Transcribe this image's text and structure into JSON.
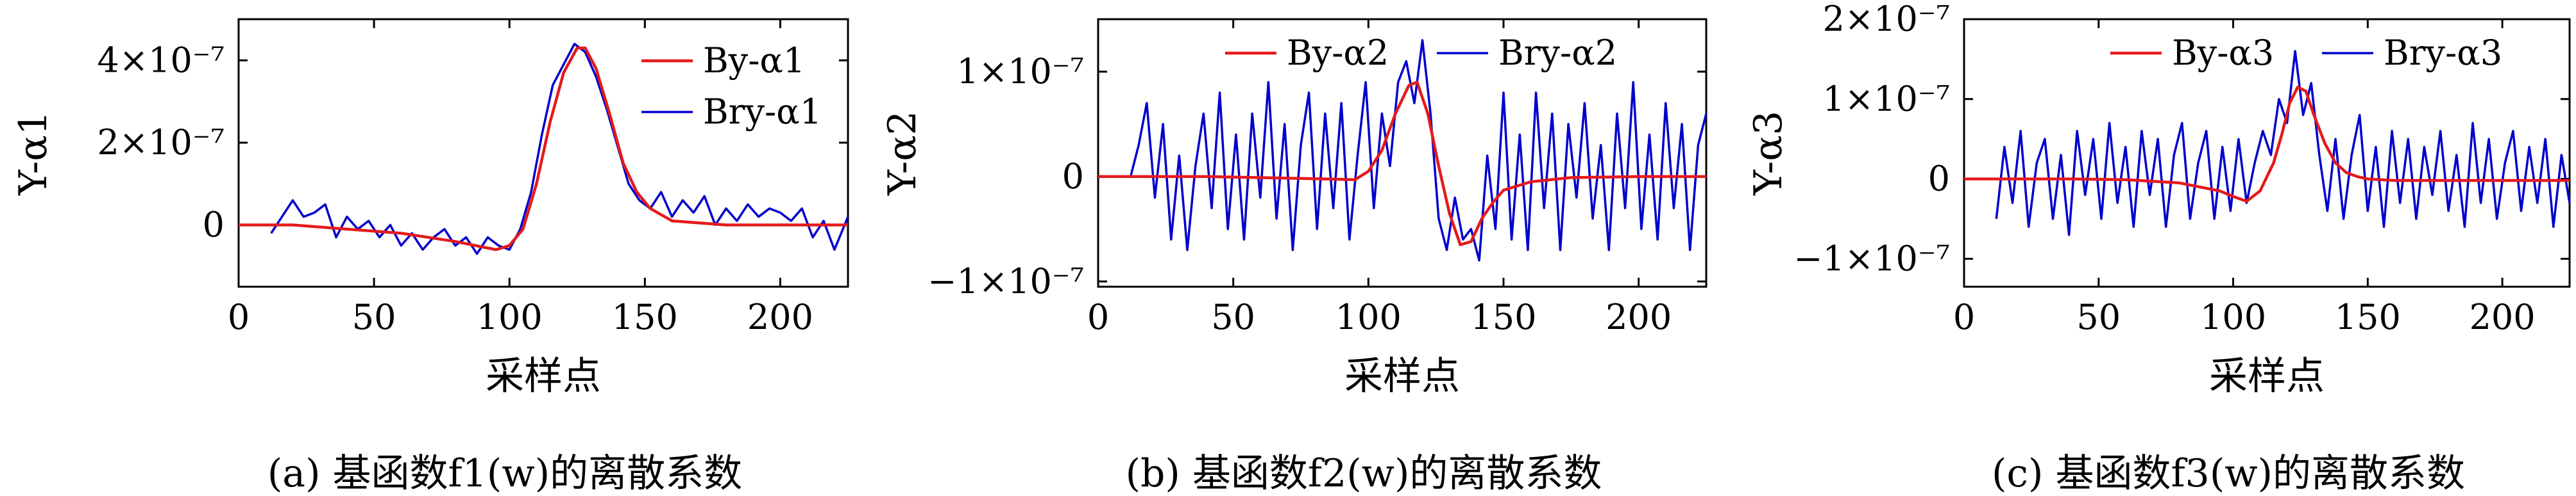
{
  "figure": {
    "captions": [
      "(a) 基函数f1(w)的离散系数",
      "(b) 基函数f2(w)的离散系数",
      "(c) 基函数f3(w)的离散系数"
    ]
  },
  "chart_data": [
    {
      "type": "line",
      "xlabel": "采样点",
      "ylabel": "Y-α1",
      "xlim": [
        0,
        225
      ],
      "ylim": [
        -1.5e-07,
        5e-07
      ],
      "xticks": [
        0,
        50,
        100,
        150,
        200
      ],
      "xtick_labels": [
        "0",
        "50",
        "100",
        "150",
        "200"
      ],
      "yticks": [
        0,
        2e-07,
        4e-07
      ],
      "ytick_labels": [
        "0",
        "2×10⁻⁷",
        "4×10⁻⁷"
      ],
      "legend_position": "top-right",
      "grid": false,
      "series": [
        {
          "name": "By-α1",
          "color": "#e41a1c",
          "x": [
            0,
            20,
            40,
            60,
            80,
            95,
            100,
            105,
            110,
            115,
            120,
            125,
            128,
            132,
            137,
            142,
            147,
            152,
            160,
            180,
            200,
            225
          ],
          "y": [
            0,
            0,
            -1e-08,
            -2e-08,
            -4e-08,
            -6e-08,
            -5e-08,
            -1e-08,
            1e-07,
            2.5e-07,
            3.7e-07,
            4.3e-07,
            4.3e-07,
            3.8e-07,
            2.7e-07,
            1.5e-07,
            8e-08,
            4e-08,
            1e-08,
            0,
            0,
            0
          ]
        },
        {
          "name": "Bry-α1",
          "color": "#0000cc",
          "x": [
            12,
            16,
            20,
            24,
            28,
            32,
            36,
            40,
            44,
            48,
            52,
            56,
            60,
            64,
            68,
            72,
            76,
            80,
            84,
            88,
            92,
            96,
            100,
            104,
            108,
            112,
            116,
            120,
            124,
            128,
            132,
            136,
            140,
            144,
            148,
            152,
            156,
            160,
            164,
            168,
            172,
            176,
            180,
            184,
            188,
            192,
            196,
            200,
            204,
            208,
            212,
            216,
            220,
            225
          ],
          "y": [
            -2e-08,
            2e-08,
            6e-08,
            2e-08,
            3e-08,
            5e-08,
            -3e-08,
            2e-08,
            -1e-08,
            1e-08,
            -3e-08,
            0,
            -5e-08,
            -2e-08,
            -6e-08,
            -3e-08,
            -1e-08,
            -5e-08,
            -3e-08,
            -7e-08,
            -3e-08,
            -5e-08,
            -6e-08,
            -1e-08,
            8e-08,
            2.2e-07,
            3.4e-07,
            3.9e-07,
            4.4e-07,
            4.2e-07,
            3.6e-07,
            2.8e-07,
            1.9e-07,
            1e-07,
            6e-08,
            4e-08,
            8e-08,
            2e-08,
            6e-08,
            3e-08,
            7e-08,
            0,
            4e-08,
            1e-08,
            5e-08,
            2e-08,
            4e-08,
            3e-08,
            1e-08,
            4e-08,
            -3e-08,
            1e-08,
            -6e-08,
            2e-08
          ]
        }
      ]
    },
    {
      "type": "line",
      "xlabel": "采样点",
      "ylabel": "Y-α2",
      "xlim": [
        0,
        225
      ],
      "ylim": [
        -1.05e-07,
        1.5e-07
      ],
      "xticks": [
        0,
        50,
        100,
        150,
        200
      ],
      "xtick_labels": [
        "0",
        "50",
        "100",
        "150",
        "200"
      ],
      "yticks": [
        -1e-07,
        0,
        1e-07
      ],
      "ytick_labels": [
        "−1×10⁻⁷",
        "0",
        "1×10⁻⁷"
      ],
      "legend_position": "top",
      "grid": false,
      "series": [
        {
          "name": "By-α2",
          "color": "#e41a1c",
          "x": [
            0,
            20,
            40,
            60,
            80,
            95,
            100,
            105,
            110,
            115,
            118,
            122,
            126,
            130,
            134,
            138,
            142,
            146,
            150,
            160,
            175,
            200,
            225
          ],
          "y": [
            0,
            0,
            0,
            -1e-09,
            -2e-09,
            -3e-09,
            5e-09,
            2.5e-08,
            6e-08,
            8.7e-08,
            9e-08,
            6e-08,
            1e-08,
            -3.5e-08,
            -6.5e-08,
            -6.2e-08,
            -4e-08,
            -2.5e-08,
            -1.3e-08,
            -5e-09,
            -1e-09,
            0,
            0
          ],
          "note": "By-α2"
        },
        {
          "name": "Bry-α2",
          "color": "#0000cc",
          "x": [
            12,
            15,
            18,
            21,
            24,
            27,
            30,
            33,
            36,
            39,
            42,
            45,
            48,
            51,
            54,
            57,
            60,
            63,
            66,
            69,
            72,
            75,
            78,
            81,
            84,
            87,
            90,
            93,
            96,
            99,
            102,
            105,
            108,
            111,
            114,
            117,
            120,
            123,
            126,
            129,
            132,
            135,
            138,
            141,
            144,
            147,
            150,
            153,
            156,
            159,
            162,
            165,
            168,
            171,
            174,
            177,
            180,
            183,
            186,
            189,
            192,
            195,
            198,
            201,
            204,
            207,
            210,
            213,
            216,
            219,
            222,
            225
          ],
          "y": [
            0,
            3e-08,
            7e-08,
            -2e-08,
            5e-08,
            -6e-08,
            2e-08,
            -7e-08,
            1e-08,
            6e-08,
            -3e-08,
            8e-08,
            -5e-08,
            4e-08,
            -6e-08,
            6e-08,
            -2e-08,
            9e-08,
            -4e-08,
            5e-08,
            -7e-08,
            3e-08,
            8e-08,
            -5e-08,
            6e-08,
            -3e-08,
            7e-08,
            -6e-08,
            2e-08,
            9e-08,
            -3e-08,
            6e-08,
            1e-08,
            9e-08,
            1.1e-07,
            7e-08,
            1.3e-07,
            6e-08,
            -4e-08,
            -7e-08,
            -2e-08,
            -6e-08,
            -5e-08,
            -8e-08,
            2e-08,
            -5e-08,
            8e-08,
            -6e-08,
            4e-08,
            -7e-08,
            8e-08,
            -3e-08,
            6e-08,
            -7e-08,
            5e-08,
            -2e-08,
            7e-08,
            -4e-08,
            3e-08,
            -7e-08,
            6e-08,
            -3e-08,
            9e-08,
            -5e-08,
            4e-08,
            -6e-08,
            7e-08,
            -3e-08,
            5e-08,
            -7e-08,
            3e-08,
            6e-08
          ]
        }
      ]
    },
    {
      "type": "line",
      "xlabel": "采样点",
      "ylabel": "Y-α3",
      "xlim": [
        0,
        225
      ],
      "ylim": [
        -1.35e-07,
        2e-07
      ],
      "xticks": [
        0,
        50,
        100,
        150,
        200
      ],
      "xtick_labels": [
        "0",
        "50",
        "100",
        "150",
        "200"
      ],
      "yticks": [
        -1e-07,
        0,
        1e-07,
        2e-07
      ],
      "ytick_labels": [
        "−1×10⁻⁷",
        "0",
        "1×10⁻⁷",
        "2×10⁻⁷"
      ],
      "legend_position": "top",
      "grid": false,
      "series": [
        {
          "name": "By-α3",
          "color": "#e41a1c",
          "x": [
            0,
            20,
            40,
            60,
            80,
            95,
            100,
            105,
            110,
            115,
            118,
            121,
            124,
            127,
            130,
            134,
            138,
            142,
            146,
            150,
            160,
            180,
            200,
            225
          ],
          "y": [
            0,
            0,
            0,
            -1e-09,
            -5e-09,
            -1.5e-08,
            -2.2e-08,
            -2.8e-08,
            -1.5e-08,
            2e-08,
            5.5e-08,
            9.5e-08,
            1.15e-07,
            1.1e-07,
            8e-08,
            4.5e-08,
            2e-08,
            8e-09,
            3e-09,
            0,
            -2e-09,
            -2e-09,
            -2e-09,
            -2e-09
          ]
        },
        {
          "name": "Bry-α3",
          "color": "#0000cc",
          "x": [
            12,
            15,
            18,
            21,
            24,
            27,
            30,
            33,
            36,
            39,
            42,
            45,
            48,
            51,
            54,
            57,
            60,
            63,
            66,
            69,
            72,
            75,
            78,
            81,
            84,
            87,
            90,
            93,
            96,
            99,
            102,
            105,
            108,
            111,
            114,
            117,
            120,
            123,
            126,
            129,
            132,
            135,
            138,
            141,
            144,
            147,
            150,
            153,
            156,
            159,
            162,
            165,
            168,
            171,
            174,
            177,
            180,
            183,
            186,
            189,
            192,
            195,
            198,
            201,
            204,
            207,
            210,
            213,
            216,
            219,
            222,
            225
          ],
          "y": [
            -5e-08,
            4e-08,
            -3e-08,
            6e-08,
            -6e-08,
            2e-08,
            5e-08,
            -5e-08,
            3e-08,
            -7e-08,
            6e-08,
            -2e-08,
            5e-08,
            -5e-08,
            7e-08,
            -3e-08,
            4e-08,
            -6e-08,
            6e-08,
            -2e-08,
            5e-08,
            -6e-08,
            3e-08,
            7e-08,
            -5e-08,
            2e-08,
            6e-08,
            -5e-08,
            4e-08,
            -4e-08,
            5e-08,
            -3e-08,
            2e-08,
            6e-08,
            3e-08,
            1e-07,
            7e-08,
            1.6e-07,
            8e-08,
            1.2e-07,
            3e-08,
            -4e-08,
            5e-08,
            -5e-08,
            3e-08,
            8e-08,
            -4e-08,
            4e-08,
            -6e-08,
            6e-08,
            -3e-08,
            5e-08,
            -5e-08,
            4e-08,
            -2e-08,
            6e-08,
            -4e-08,
            3e-08,
            -6e-08,
            7e-08,
            -3e-08,
            5e-08,
            -5e-08,
            2e-08,
            6e-08,
            -4e-08,
            4e-08,
            -3e-08,
            5e-08,
            -6e-08,
            3e-08,
            -3e-08
          ]
        }
      ]
    }
  ]
}
